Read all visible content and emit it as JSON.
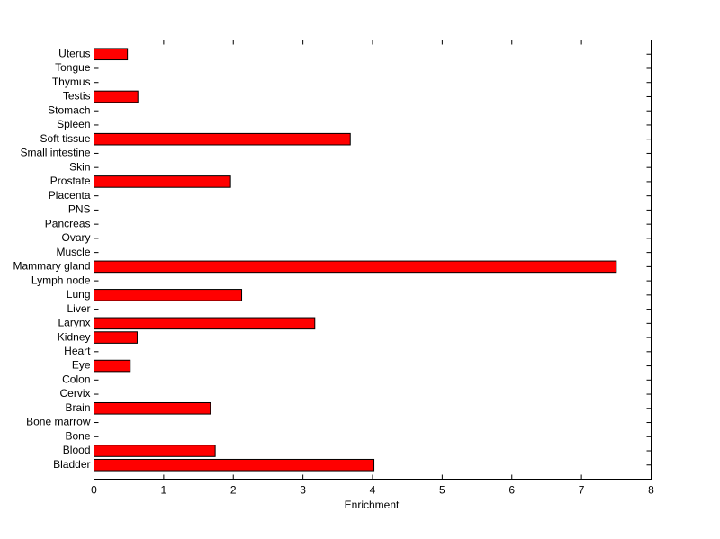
{
  "chart_data": {
    "type": "barh",
    "xlabel": "Enrichment",
    "categories": [
      "Bladder",
      "Blood",
      "Bone",
      "Bone marrow",
      "Brain",
      "Cervix",
      "Colon",
      "Eye",
      "Heart",
      "Kidney",
      "Larynx",
      "Liver",
      "Lung",
      "Lymph node",
      "Mammary gland",
      "Muscle",
      "Ovary",
      "Pancreas",
      "PNS",
      "Placenta",
      "Prostate",
      "Skin",
      "Small intestine",
      "Soft tissue",
      "Spleen",
      "Stomach",
      "Testis",
      "Thymus",
      "Tongue",
      "Uterus"
    ],
    "values": [
      4.02,
      1.74,
      0,
      0,
      1.67,
      0,
      0,
      0.52,
      0,
      0.62,
      3.17,
      0,
      2.12,
      0,
      7.5,
      0,
      0,
      0,
      0,
      0,
      1.96,
      0,
      0,
      3.68,
      0,
      0,
      0.63,
      0,
      0,
      0.48
    ],
    "color": "#ff0000",
    "xlim": [
      0,
      8
    ],
    "xticks": [
      0,
      1,
      2,
      3,
      4,
      5,
      6,
      7,
      8
    ]
  }
}
